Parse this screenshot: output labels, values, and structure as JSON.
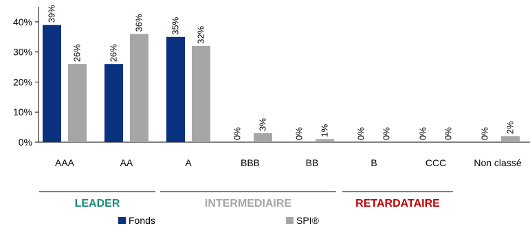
{
  "chart_data": {
    "type": "bar",
    "title": "",
    "xlabel": "",
    "ylabel": "",
    "ylim": [
      0,
      45
    ],
    "y_ticks": [
      0,
      10,
      20,
      30,
      40
    ],
    "y_tick_labels": [
      "0%",
      "10%",
      "20%",
      "30%",
      "40%"
    ],
    "grid": false,
    "categories": [
      "AAA",
      "AA",
      "A",
      "BBB",
      "BB",
      "B",
      "CCC",
      "Non classé"
    ],
    "series": [
      {
        "name": "Fonds",
        "color": "#0b3281",
        "values": [
          39,
          26,
          35,
          0,
          0,
          0,
          0,
          0
        ],
        "labels": [
          "39%",
          "26%",
          "35%",
          "0%",
          "0%",
          "0%",
          "0%",
          "0%"
        ]
      },
      {
        "name": "SPI®",
        "color": "#a6a6a6",
        "values": [
          26,
          36,
          32,
          3,
          1,
          0,
          0,
          2
        ],
        "labels": [
          "26%",
          "36%",
          "32%",
          "3%",
          "1%",
          "0%",
          "0%",
          "2%"
        ]
      }
    ],
    "groups": [
      {
        "label": "LEADER",
        "color": "#1a8a78",
        "categories": [
          "AAA",
          "AA"
        ]
      },
      {
        "label": "INTERMEDIAIRE",
        "color": "#a6a6a6",
        "categories": [
          "A",
          "BBB",
          "BB"
        ]
      },
      {
        "label": "RETARDATAIRE",
        "color": "#c00000",
        "categories": [
          "B",
          "CCC"
        ]
      }
    ],
    "legend_position": "bottom"
  }
}
